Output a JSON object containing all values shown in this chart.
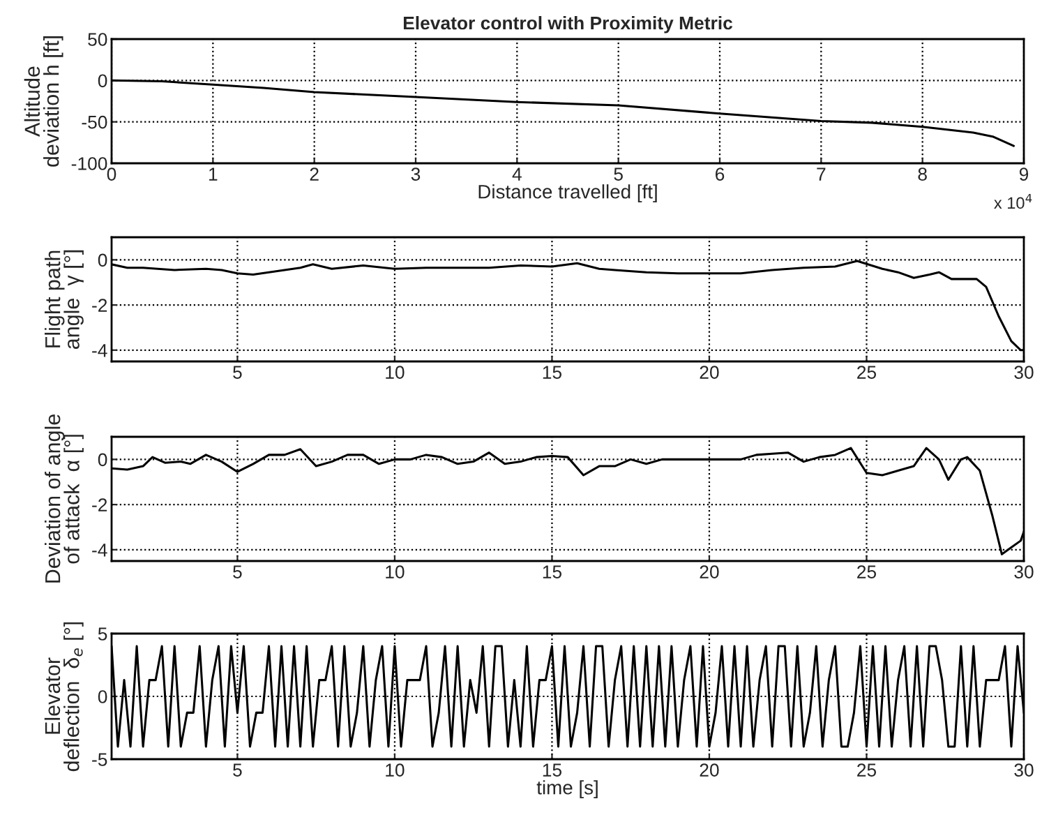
{
  "chart_data": [
    {
      "type": "line",
      "title": "Elevator control with Proximity Metric",
      "xlabel": "Distance travelled [ft]",
      "ylabel": "Altitude\ndeviation h [ft]",
      "annotations": [
        "x 10$^{4}$"
      ],
      "xlim": [
        0,
        9
      ],
      "xticks": [
        0,
        1,
        2,
        3,
        4,
        5,
        6,
        7,
        8,
        9
      ],
      "ylim": [
        -100,
        50
      ],
      "yticks": [
        -100,
        -50,
        0,
        50
      ],
      "grid": true,
      "series": [
        {
          "color": "#000000",
          "x": [
            0,
            0.5,
            1,
            1.5,
            2,
            3,
            4,
            5,
            6,
            7,
            7.5,
            8,
            8.5,
            8.7,
            8.9
          ],
          "values": [
            0,
            -1,
            -5,
            -9,
            -14,
            -20,
            -26,
            -30,
            -40,
            -49,
            -51,
            -56,
            -63,
            -68,
            -79
          ]
        }
      ]
    },
    {
      "type": "line",
      "ylabel": "Flight path\nangle  γ [°]",
      "xlim": [
        1,
        30
      ],
      "xticks": [
        5,
        10,
        15,
        20,
        25,
        30
      ],
      "ylim": [
        -4.5,
        1
      ],
      "yticks": [
        -4,
        -2,
        0
      ],
      "grid": true,
      "series": [
        {
          "color": "#000000",
          "x": [
            1,
            1.5,
            2,
            3,
            4,
            4.5,
            5,
            5.5,
            6,
            7,
            7.4,
            8,
            9,
            10,
            11,
            12,
            13,
            14,
            15,
            15.8,
            16.5,
            17,
            18,
            19,
            20,
            21,
            22,
            23,
            24,
            24.7,
            25.5,
            26,
            26.5,
            27,
            27.3,
            27.7,
            28,
            28.5,
            28.8,
            29.2,
            29.6,
            29.9,
            30
          ],
          "values": [
            -0.2,
            -0.35,
            -0.35,
            -0.45,
            -0.4,
            -0.45,
            -0.6,
            -0.65,
            -0.55,
            -0.35,
            -0.2,
            -0.4,
            -0.25,
            -0.4,
            -0.35,
            -0.35,
            -0.35,
            -0.25,
            -0.3,
            -0.15,
            -0.4,
            -0.45,
            -0.55,
            -0.6,
            -0.6,
            -0.6,
            -0.45,
            -0.35,
            -0.3,
            -0.05,
            -0.4,
            -0.55,
            -0.8,
            -0.65,
            -0.55,
            -0.85,
            -0.85,
            -0.85,
            -1.2,
            -2.5,
            -3.6,
            -4.0,
            -4.0
          ]
        }
      ]
    },
    {
      "type": "line",
      "ylabel": "Deviation of angle\nof attack  α [°]",
      "xlim": [
        1,
        30
      ],
      "xticks": [
        5,
        10,
        15,
        20,
        25,
        30
      ],
      "ylim": [
        -4.5,
        1
      ],
      "yticks": [
        -4,
        -2,
        0
      ],
      "grid": true,
      "series": [
        {
          "color": "#000000",
          "x": [
            1,
            1.5,
            2,
            2.3,
            2.7,
            3.2,
            3.5,
            4,
            4.5,
            5,
            5.5,
            6,
            6.5,
            7,
            7.5,
            8,
            8.5,
            9,
            9.5,
            10,
            10.5,
            11,
            11.5,
            12,
            12.5,
            13,
            13.5,
            14,
            14.5,
            15,
            15.5,
            16,
            16.5,
            17,
            17.5,
            18,
            18.5,
            19,
            20,
            21,
            21.5,
            22,
            22.5,
            23,
            23.5,
            24,
            24.5,
            25,
            25.5,
            26,
            26.5,
            26.9,
            27.3,
            27.6,
            28,
            28.2,
            28.6,
            29,
            29.3,
            29.6,
            29.9,
            30
          ],
          "values": [
            -0.4,
            -0.45,
            -0.3,
            0.1,
            -0.15,
            -0.1,
            -0.2,
            0.2,
            -0.1,
            -0.55,
            -0.2,
            0.2,
            0.2,
            0.45,
            -0.3,
            -0.1,
            0.2,
            0.2,
            -0.2,
            0.0,
            0.0,
            0.2,
            0.1,
            -0.2,
            -0.1,
            0.3,
            -0.2,
            -0.1,
            0.1,
            0.15,
            0.1,
            -0.7,
            -0.3,
            -0.3,
            0.0,
            -0.2,
            0.0,
            0.0,
            0.0,
            0.0,
            0.2,
            0.25,
            0.3,
            -0.1,
            0.1,
            0.2,
            0.5,
            -0.6,
            -0.7,
            -0.5,
            -0.3,
            0.5,
            0.0,
            -0.9,
            0.0,
            0.1,
            -0.5,
            -2.5,
            -4.2,
            -3.9,
            -3.6,
            -3.2
          ]
        }
      ]
    },
    {
      "type": "line",
      "xlabel": "time [s]",
      "ylabel": "Elevator\ndeflection  δ$_{e}$ [°]",
      "xlim": [
        1,
        30
      ],
      "xticks": [
        5,
        10,
        15,
        20,
        25,
        30
      ],
      "ylim": [
        -5,
        5
      ],
      "yticks": [
        -5,
        0,
        5
      ],
      "grid": true,
      "series": [
        {
          "color": "#000000",
          "x": [
            1.0,
            1.2,
            1.4,
            1.6,
            1.8,
            2.0,
            2.2,
            2.4,
            2.6,
            2.8,
            3.0,
            3.2,
            3.4,
            3.6,
            3.8,
            4.0,
            4.2,
            4.4,
            4.6,
            4.8,
            5.0,
            5.2,
            5.4,
            5.6,
            5.8,
            6.0,
            6.2,
            6.4,
            6.6,
            6.8,
            7.0,
            7.2,
            7.4,
            7.6,
            7.8,
            8.0,
            8.2,
            8.4,
            8.6,
            8.8,
            9.0,
            9.2,
            9.4,
            9.6,
            9.8,
            10.0,
            10.2,
            10.4,
            10.6,
            10.8,
            11.0,
            11.2,
            11.4,
            11.6,
            11.8,
            12.0,
            12.2,
            12.4,
            12.6,
            12.8,
            13.0,
            13.2,
            13.4,
            13.6,
            13.8,
            14.0,
            14.2,
            14.4,
            14.6,
            14.8,
            15.0,
            15.2,
            15.4,
            15.6,
            15.8,
            16.0,
            16.2,
            16.4,
            16.6,
            16.8,
            17.0,
            17.2,
            17.4,
            17.6,
            17.8,
            18.0,
            18.2,
            18.4,
            18.6,
            18.8,
            19.0,
            19.2,
            19.4,
            19.6,
            19.8,
            20.0,
            20.2,
            20.4,
            20.6,
            20.8,
            21.0,
            21.2,
            21.4,
            21.6,
            21.8,
            22.0,
            22.2,
            22.4,
            22.6,
            22.8,
            23.0,
            23.2,
            23.4,
            23.6,
            23.8,
            24.0,
            24.2,
            24.4,
            24.6,
            24.8,
            25.0,
            25.2,
            25.4,
            25.6,
            25.8,
            26.0,
            26.2,
            26.4,
            26.6,
            26.8,
            27.0,
            27.2,
            27.4,
            27.6,
            27.8,
            28.0,
            28.2,
            28.4,
            28.6,
            28.8,
            29.0,
            29.2,
            29.4,
            29.6,
            29.8,
            30.0
          ],
          "values": [
            4,
            -4,
            1.3,
            -4,
            4,
            -4,
            1.3,
            1.3,
            4,
            -4,
            4,
            -4,
            -1.3,
            -1.3,
            4,
            -4,
            1.3,
            4,
            -4,
            4,
            -1.3,
            4,
            -4,
            -1.3,
            -1.3,
            4,
            -4,
            4,
            -4,
            4,
            -4,
            4,
            -4,
            1.3,
            1.3,
            4,
            -4,
            4,
            -4,
            -1.3,
            4,
            -4,
            1.3,
            4,
            -4,
            4,
            -4,
            1.3,
            1.3,
            1.3,
            4,
            -4,
            -1.3,
            4,
            -4,
            4,
            -4,
            1.3,
            -1.3,
            4,
            -4,
            4,
            4,
            -4,
            1.3,
            -4,
            4,
            -4,
            1.3,
            1.3,
            4,
            -4,
            4,
            -4,
            -1.3,
            4,
            -4,
            4,
            4,
            -4,
            1.3,
            4,
            -4,
            4,
            -4,
            4,
            -4,
            4,
            -4,
            4,
            -4,
            1.3,
            4,
            -4,
            4,
            -4,
            -1.3,
            4,
            -4,
            4,
            -4,
            4,
            -4,
            1.3,
            4,
            -4,
            4,
            4,
            -4,
            4,
            -4,
            -1.3,
            4,
            -4,
            1.3,
            4,
            -4,
            -4,
            -1.3,
            4,
            -4,
            4,
            -4,
            4,
            -4,
            1.3,
            4,
            -4,
            4,
            -4,
            4,
            4,
            1.3,
            -4,
            -4,
            4,
            -4,
            4,
            -4,
            1.3,
            1.3,
            1.3,
            4,
            -4,
            4,
            -1.3
          ]
        }
      ]
    }
  ]
}
